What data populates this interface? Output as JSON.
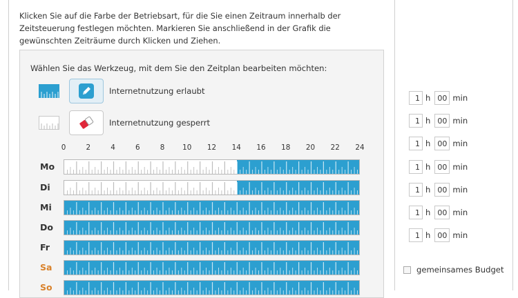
{
  "intro_text": "Klicken Sie auf die Farbe der Betriebsart, für die Sie einen Zeitraum innerhalb der Zeitsteuerung festlegen möchten. Markieren Sie anschließend in der Grafik die gewünschten Zeiträume durch Klicken und Ziehen.",
  "panel_title": "Wählen Sie das Werkzeug, mit dem Sie den Zeitplan bearbeiten möchten:",
  "tools": [
    {
      "label": "Internetnutzung erlaubt",
      "icon": "pencil-icon",
      "selected": true,
      "color": "#2c9fd0"
    },
    {
      "label": "Internetnutzung gesperrt",
      "icon": "eraser-icon",
      "selected": false,
      "color": "#ffffff"
    }
  ],
  "hour_labels": [
    "0",
    "2",
    "4",
    "6",
    "8",
    "10",
    "12",
    "14",
    "16",
    "18",
    "20",
    "22",
    "24"
  ],
  "days": [
    {
      "label": "Mo",
      "weekend": false,
      "allowed_from_hour": 14,
      "allowed_to_hour": 24
    },
    {
      "label": "Di",
      "weekend": false,
      "allowed_from_hour": 14,
      "allowed_to_hour": 24
    },
    {
      "label": "Mi",
      "weekend": false,
      "allowed_from_hour": 0,
      "allowed_to_hour": 24
    },
    {
      "label": "Do",
      "weekend": false,
      "allowed_from_hour": 0,
      "allowed_to_hour": 24
    },
    {
      "label": "Fr",
      "weekend": false,
      "allowed_from_hour": 0,
      "allowed_to_hour": 24
    },
    {
      "label": "Sa",
      "weekend": true,
      "allowed_from_hour": 0,
      "allowed_to_hour": 24
    },
    {
      "label": "So",
      "weekend": true,
      "allowed_from_hour": 0,
      "allowed_to_hour": 24
    }
  ],
  "time_limits": [
    {
      "hours": "1",
      "minutes": "00"
    },
    {
      "hours": "1",
      "minutes": "00"
    },
    {
      "hours": "1",
      "minutes": "00"
    },
    {
      "hours": "1",
      "minutes": "00"
    },
    {
      "hours": "1",
      "minutes": "00"
    },
    {
      "hours": "1",
      "minutes": "00"
    },
    {
      "hours": "1",
      "minutes": "00"
    }
  ],
  "hour_unit": "h",
  "minute_unit": "min",
  "budget_label": "gemeinsames Budget",
  "colors": {
    "allowed": "#2c9fd0",
    "blocked": "#ffffff",
    "weekend_label": "#d9822b"
  }
}
